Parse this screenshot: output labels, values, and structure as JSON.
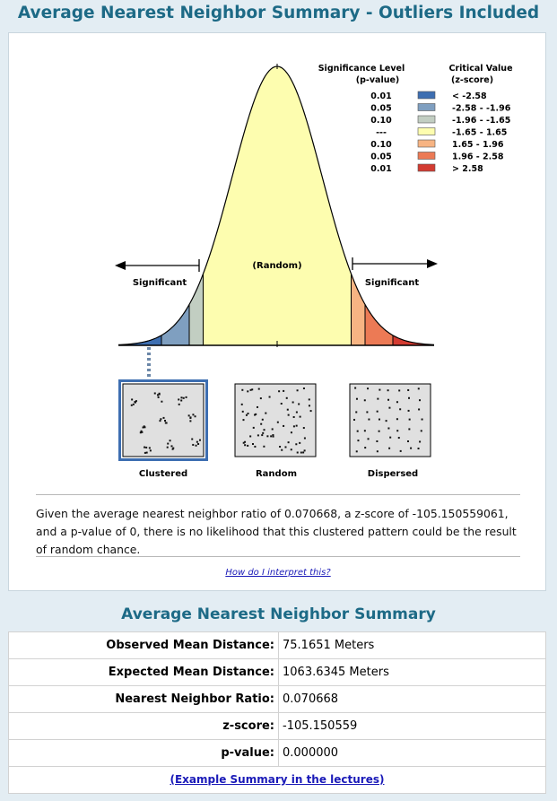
{
  "header": {
    "title": "Average Nearest Neighbor Summary - Outliers Included"
  },
  "legend": {
    "sig_header_1": "Significance Level",
    "sig_header_2": "(p-value)",
    "crit_header_1": "Critical Value",
    "crit_header_2": "(z-score)",
    "rows": [
      {
        "p": "0.01",
        "z": "< -2.58",
        "color": "#3d6eb1"
      },
      {
        "p": "0.05",
        "z": "-2.58 - -1.96",
        "color": "#7f9fc0"
      },
      {
        "p": "0.10",
        "z": "-1.96 - -1.65",
        "color": "#c2cec2"
      },
      {
        "p": "---",
        "z": "-1.65 - 1.65",
        "color": "#fdfdaf"
      },
      {
        "p": "0.10",
        "z": "1.65 - 1.96",
        "color": "#f7b483"
      },
      {
        "p": "0.05",
        "z": "1.96 - 2.58",
        "color": "#ec7a55"
      },
      {
        "p": "0.01",
        "z": "> 2.58",
        "color": "#d33b31"
      }
    ]
  },
  "curve": {
    "random_label": "(Random)",
    "significant_left": "Significant",
    "significant_right": "Significant"
  },
  "patterns": {
    "clustered": "Clustered",
    "random": "Random",
    "dispersed": "Dispersed"
  },
  "interpretation": "Given the average nearest neighbor ratio of 0.070668, a z-score of -105.150559061, and a p-value of 0, there is no likelihood that this clustered pattern could be the result of random chance.",
  "how_link": "How do I interpret this?",
  "summary": {
    "title": "Average Nearest Neighbor Summary",
    "rows": [
      {
        "label": "Observed Mean Distance:",
        "value": "75.1651 Meters"
      },
      {
        "label": "Expected Mean Distance:",
        "value": "1063.6345 Meters"
      },
      {
        "label": "Nearest Neighbor Ratio:",
        "value": "0.070668"
      },
      {
        "label": "z-score:",
        "value": "-105.150559"
      },
      {
        "label": "p-value:",
        "value": "0.000000"
      }
    ],
    "footer_link": "(Example Summary in the lectures)"
  }
}
